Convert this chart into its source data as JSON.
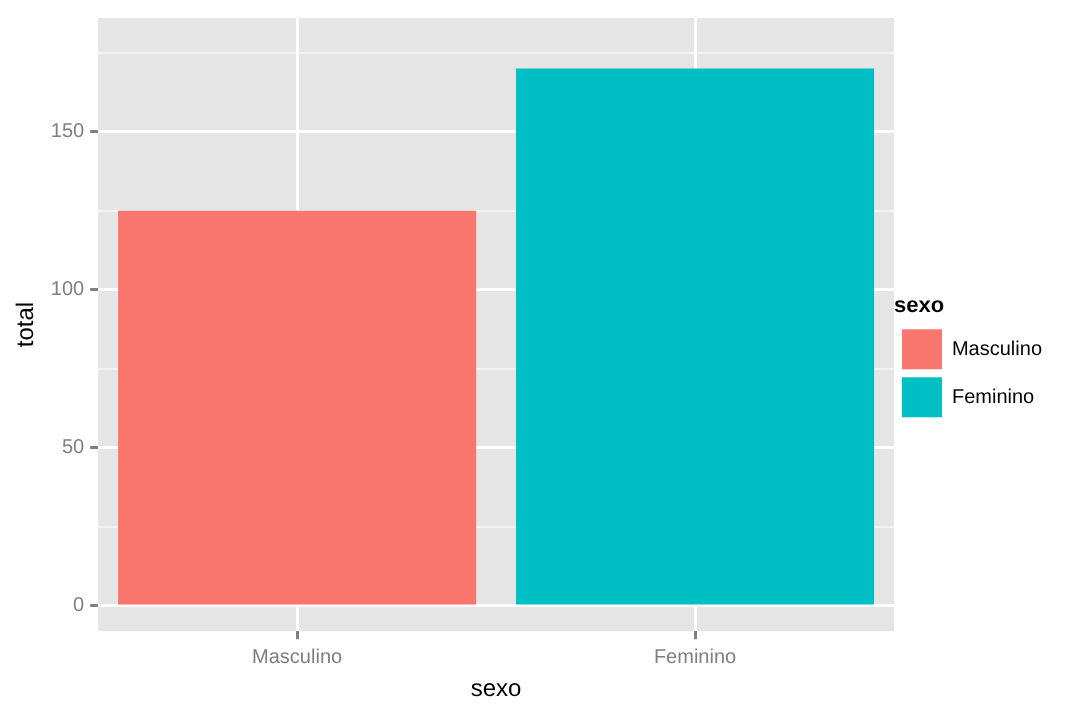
{
  "chart_data": {
    "type": "bar",
    "xlabel": "sexo",
    "ylabel": "total",
    "legend_title": "sexo",
    "categories": [
      "Masculino",
      "Feminino"
    ],
    "series": [
      {
        "name": "Masculino",
        "color": "#f8766d",
        "values": [
          125,
          null
        ]
      },
      {
        "name": "Feminino",
        "color": "#00bfc4",
        "values": [
          null,
          170
        ]
      }
    ],
    "ylim": [
      -8,
      186
    ],
    "yticks": [
      0,
      {
        "value": 25,
        "label": null
      },
      50,
      {
        "value": 75,
        "label": null
      },
      100,
      {
        "value": 125,
        "label": null
      },
      150,
      {
        "value": 175,
        "label": null
      }
    ],
    "grid": true,
    "legend": "right"
  }
}
